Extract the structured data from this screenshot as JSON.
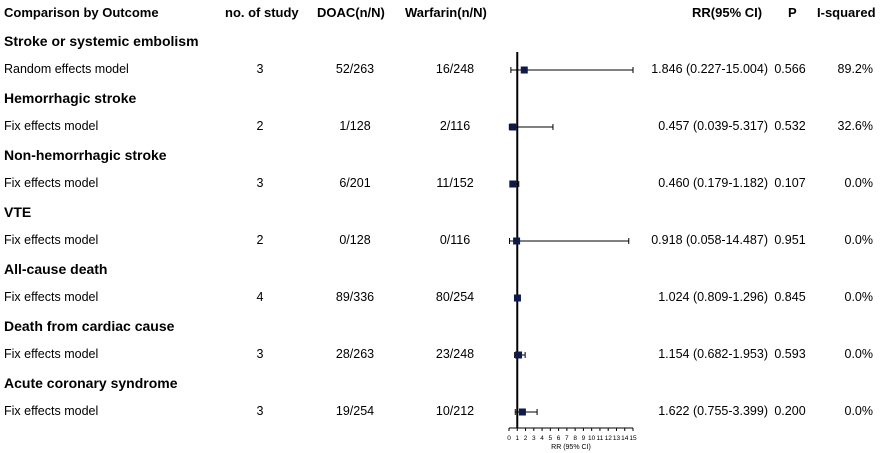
{
  "headers": {
    "outcome": "Comparison by Outcome",
    "n_study": "no. of study",
    "doac": "DOAC(n/N)",
    "warfarin": "Warfarin(n/N)",
    "rr": "RR(95% CI)",
    "p": "P",
    "i2": "I-squared"
  },
  "rows": [
    {
      "group": "Stroke or systemic embolism",
      "model": "Random effects model",
      "n_study": "3",
      "doac": "52/263",
      "warfarin": "16/248",
      "rr_text": "1.846 (0.227-15.004)",
      "p": "0.566",
      "i2": "89.2%"
    },
    {
      "group": "Hemorrhagic stroke",
      "model": "Fix effects model",
      "n_study": "2",
      "doac": "1/128",
      "warfarin": "2/116",
      "rr_text": "0.457 (0.039-5.317)",
      "p": "0.532",
      "i2": "32.6%"
    },
    {
      "group": "Non-hemorrhagic stroke",
      "model": "Fix effects model",
      "n_study": "3",
      "doac": "6/201",
      "warfarin": "11/152",
      "rr_text": "0.460 (0.179-1.182)",
      "p": "0.107",
      "i2": "0.0%"
    },
    {
      "group": "VTE",
      "model": "Fix effects model",
      "n_study": "2",
      "doac": "0/128",
      "warfarin": "0/116",
      "rr_text": "0.918 (0.058-14.487)",
      "p": "0.951",
      "i2": "0.0%"
    },
    {
      "group": "All-cause death",
      "model": "Fix effects model",
      "n_study": "4",
      "doac": "89/336",
      "warfarin": "80/254",
      "rr_text": "1.024 (0.809-1.296)",
      "p": "0.845",
      "i2": "0.0%"
    },
    {
      "group": "Death from cardiac cause",
      "model": "Fix effects model",
      "n_study": "3",
      "doac": "28/263",
      "warfarin": "23/248",
      "rr_text": "1.154 (0.682-1.953)",
      "p": "0.593",
      "i2": "0.0%"
    },
    {
      "group": "Acute coronary syndrome",
      "model": "Fix effects model",
      "n_study": "3",
      "doac": "19/254",
      "warfarin": "10/212",
      "rr_text": "1.622 (0.755-3.399)",
      "p": "0.200",
      "i2": "0.0%"
    }
  ],
  "chart_data": {
    "type": "forest",
    "xlabel": "RR (95% CI)",
    "xlim": [
      0,
      15
    ],
    "xticks": [
      "0",
      "1",
      "2",
      "3",
      "4",
      "5",
      "6",
      "7",
      "8",
      "9",
      "10",
      "11",
      "12",
      "13",
      "14",
      "15"
    ],
    "reference_line": 1,
    "series": [
      {
        "label": "Stroke or systemic embolism",
        "rr": 1.846,
        "lo": 0.227,
        "hi": 15.004
      },
      {
        "label": "Hemorrhagic stroke",
        "rr": 0.457,
        "lo": 0.039,
        "hi": 5.317
      },
      {
        "label": "Non-hemorrhagic stroke",
        "rr": 0.46,
        "lo": 0.179,
        "hi": 1.182
      },
      {
        "label": "VTE",
        "rr": 0.918,
        "lo": 0.058,
        "hi": 14.487
      },
      {
        "label": "All-cause death",
        "rr": 1.024,
        "lo": 0.809,
        "hi": 1.296
      },
      {
        "label": "Death from cardiac cause",
        "rr": 1.154,
        "lo": 0.682,
        "hi": 1.953
      },
      {
        "label": "Acute coronary syndrome",
        "rr": 1.622,
        "lo": 0.755,
        "hi": 3.399
      }
    ]
  }
}
